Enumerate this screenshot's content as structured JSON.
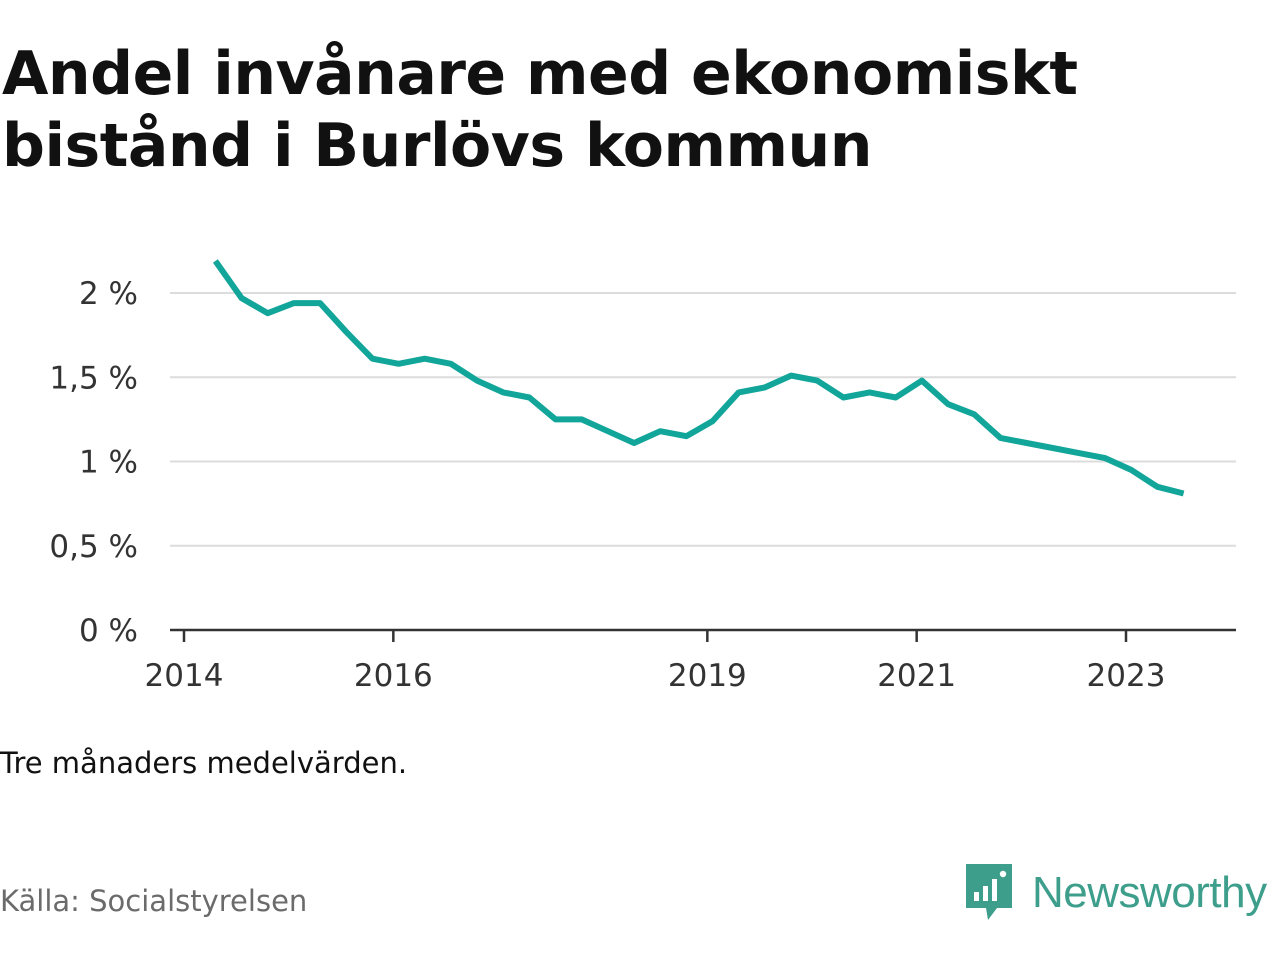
{
  "title": "Andel invånare med ekonomiskt bistånd i Burlövs kommun",
  "note": "Tre månaders medelvärden.",
  "source": "Källa: Socialstyrelsen",
  "brand": {
    "name": "Newsworthy",
    "icon": "newsworthy-logo-icon",
    "color": "#3d9e8c"
  },
  "chart_data": {
    "type": "line",
    "color": "#12a59a",
    "grid": true,
    "xlim": [
      2014.0,
      2024.2
    ],
    "ylim": [
      0,
      2.0
    ],
    "xticks": [
      {
        "value": 2014,
        "label": "2014"
      },
      {
        "value": 2016,
        "label": "2016"
      },
      {
        "value": 2019,
        "label": "2019"
      },
      {
        "value": 2021,
        "label": "2021"
      },
      {
        "value": 2023,
        "label": "2023"
      }
    ],
    "yticks": [
      {
        "value": 0,
        "label": "0 %"
      },
      {
        "value": 0.5,
        "label": "0,5 %"
      },
      {
        "value": 1,
        "label": "1 %"
      },
      {
        "value": 1.5,
        "label": "1,5 %"
      },
      {
        "value": 2,
        "label": "2 %"
      }
    ],
    "series": [
      {
        "points": [
          [
            2014.3,
            2.19
          ],
          [
            2014.55,
            1.97
          ],
          [
            2014.8,
            1.88
          ],
          [
            2015.05,
            1.94
          ],
          [
            2015.3,
            1.94
          ],
          [
            2015.55,
            1.77
          ],
          [
            2015.8,
            1.61
          ],
          [
            2016.05,
            1.58
          ],
          [
            2016.3,
            1.61
          ],
          [
            2016.55,
            1.58
          ],
          [
            2016.8,
            1.48
          ],
          [
            2017.05,
            1.41
          ],
          [
            2017.3,
            1.38
          ],
          [
            2017.55,
            1.25
          ],
          [
            2017.8,
            1.25
          ],
          [
            2018.05,
            1.18
          ],
          [
            2018.3,
            1.11
          ],
          [
            2018.55,
            1.18
          ],
          [
            2018.8,
            1.15
          ],
          [
            2019.05,
            1.24
          ],
          [
            2019.3,
            1.41
          ],
          [
            2019.55,
            1.44
          ],
          [
            2019.8,
            1.51
          ],
          [
            2020.05,
            1.48
          ],
          [
            2020.3,
            1.38
          ],
          [
            2020.55,
            1.41
          ],
          [
            2020.8,
            1.38
          ],
          [
            2021.05,
            1.48
          ],
          [
            2021.3,
            1.34
          ],
          [
            2021.55,
            1.28
          ],
          [
            2021.8,
            1.14
          ],
          [
            2022.05,
            1.11
          ],
          [
            2022.3,
            1.08
          ],
          [
            2022.55,
            1.05
          ],
          [
            2022.8,
            1.02
          ],
          [
            2023.05,
            0.95
          ],
          [
            2023.3,
            0.85
          ],
          [
            2023.55,
            0.81
          ]
        ]
      }
    ]
  }
}
